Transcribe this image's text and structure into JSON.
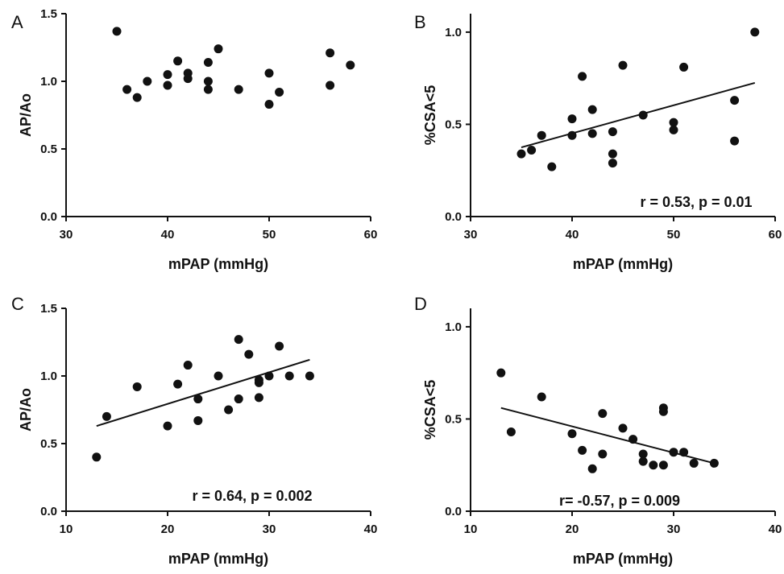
{
  "chart_data": [
    {
      "panel": "A",
      "type": "scatter",
      "xlabel": "mPAP (mmHg)",
      "ylabel": "AP/Ao",
      "xlim": [
        30,
        60
      ],
      "ylim": [
        0,
        1.5
      ],
      "xticks": [
        "30",
        "40",
        "50",
        "60"
      ],
      "yticks": [
        "0.0",
        "0.5",
        "1.0",
        "1.5"
      ],
      "x": [
        35,
        36,
        37,
        38,
        40,
        40,
        41,
        42,
        42,
        44,
        44,
        44,
        45,
        47,
        50,
        50,
        51,
        56,
        56,
        58
      ],
      "y": [
        1.37,
        0.94,
        0.88,
        1.0,
        1.05,
        0.97,
        1.15,
        1.06,
        1.02,
        1.14,
        1.0,
        0.94,
        1.24,
        0.94,
        1.06,
        0.83,
        0.92,
        1.21,
        0.97,
        1.12
      ],
      "annotation": ""
    },
    {
      "panel": "B",
      "type": "scatter",
      "xlabel": "mPAP (mmHg)",
      "ylabel": "%CSA<5",
      "xlim": [
        30,
        60
      ],
      "ylim": [
        0,
        1.1
      ],
      "xticks": [
        "30",
        "40",
        "50",
        "60"
      ],
      "yticks": [
        "0.0",
        "0.5",
        "1.0"
      ],
      "x": [
        35,
        36,
        37,
        38,
        40,
        40,
        41,
        42,
        42,
        44,
        44,
        44,
        45,
        47,
        50,
        50,
        51,
        56,
        56,
        58
      ],
      "y": [
        0.34,
        0.36,
        0.44,
        0.27,
        0.53,
        0.44,
        0.76,
        0.58,
        0.45,
        0.46,
        0.34,
        0.29,
        0.82,
        0.55,
        0.51,
        0.47,
        0.81,
        0.63,
        0.41,
        1.0
      ],
      "fit": {
        "x": [
          35,
          58
        ],
        "y": [
          0.375,
          0.725
        ]
      },
      "annotation": "r = 0.53, p = 0.01"
    },
    {
      "panel": "C",
      "type": "scatter",
      "xlabel": "mPAP (mmHg)",
      "ylabel": "AP/Ao",
      "xlim": [
        10,
        40
      ],
      "ylim": [
        0,
        1.5
      ],
      "xticks": [
        "10",
        "20",
        "30",
        "40"
      ],
      "yticks": [
        "0.0",
        "0.5",
        "1.0",
        "1.5"
      ],
      "x": [
        13,
        14,
        17,
        20,
        21,
        22,
        23,
        23,
        25,
        26,
        27,
        27,
        28,
        29,
        29,
        29,
        30,
        31,
        32,
        34
      ],
      "y": [
        0.4,
        0.7,
        0.92,
        0.63,
        0.94,
        1.08,
        0.83,
        0.67,
        1.0,
        0.75,
        1.27,
        0.83,
        1.16,
        0.97,
        0.95,
        0.84,
        1.0,
        1.22,
        1.0,
        1.0
      ],
      "fit": {
        "x": [
          13,
          34
        ],
        "y": [
          0.63,
          1.12
        ]
      },
      "annotation": "r = 0.64, p = 0.002"
    },
    {
      "panel": "D",
      "type": "scatter",
      "xlabel": "mPAP (mmHg)",
      "ylabel": "%CSA<5",
      "xlim": [
        10,
        40
      ],
      "ylim": [
        0,
        1.1
      ],
      "xticks": [
        "10",
        "20",
        "30",
        "40"
      ],
      "yticks": [
        "0.0",
        "0.5",
        "1.0"
      ],
      "x": [
        13,
        14,
        17,
        20,
        21,
        22,
        23,
        23,
        25,
        26,
        27,
        27,
        28,
        29,
        29,
        29,
        30,
        31,
        32,
        34
      ],
      "y": [
        0.75,
        0.43,
        0.62,
        0.42,
        0.33,
        0.23,
        0.31,
        0.53,
        0.45,
        0.39,
        0.31,
        0.27,
        0.25,
        0.56,
        0.54,
        0.25,
        0.32,
        0.32,
        0.26,
        0.26
      ],
      "fit": {
        "x": [
          13,
          34
        ],
        "y": [
          0.56,
          0.26
        ]
      },
      "annotation": "r= -0.57, p = 0.009"
    }
  ]
}
